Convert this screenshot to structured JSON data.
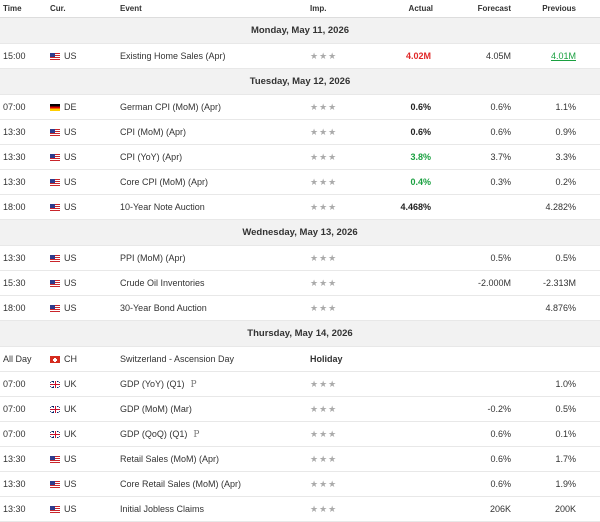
{
  "columns": {
    "time": "Time",
    "currency": "Cur.",
    "event": "Event",
    "importance": "Imp.",
    "actual": "Actual",
    "forecast": "Forecast",
    "previous": "Previous"
  },
  "stars_glyph": "★★★",
  "days": [
    {
      "title": "Monday, May 11, 2026",
      "events": [
        {
          "time": "15:00",
          "flag": "us",
          "cur": "US",
          "event": "Existing Home Sales  (Apr)",
          "actual": "4.02M",
          "actual_color": "red",
          "forecast": "4.05M",
          "previous": "4.01M",
          "previous_color": "green"
        }
      ]
    },
    {
      "title": "Tuesday, May 12, 2026",
      "events": [
        {
          "time": "07:00",
          "flag": "de",
          "cur": "DE",
          "event": "German CPI (MoM) (Apr)",
          "actual": "0.6%",
          "actual_color": "black",
          "forecast": "0.6%",
          "previous": "1.1%"
        },
        {
          "time": "13:30",
          "flag": "us",
          "cur": "US",
          "event": "CPI (MoM) (Apr)",
          "actual": "0.6%",
          "actual_color": "black",
          "forecast": "0.6%",
          "previous": "0.9%"
        },
        {
          "time": "13:30",
          "flag": "us",
          "cur": "US",
          "event": "CPI (YoY) (Apr)",
          "actual": "3.8%",
          "actual_color": "green",
          "forecast": "3.7%",
          "previous": "3.3%"
        },
        {
          "time": "13:30",
          "flag": "us",
          "cur": "US",
          "event": "Core CPI (MoM) (Apr)",
          "actual": "0.4%",
          "actual_color": "green",
          "forecast": "0.3%",
          "previous": "0.2%"
        },
        {
          "time": "18:00",
          "flag": "us",
          "cur": "US",
          "event": "10-Year Note Auction",
          "actual": "4.468%",
          "actual_color": "black",
          "forecast": "",
          "previous": "4.282%"
        }
      ]
    },
    {
      "title": "Wednesday, May 13, 2026",
      "events": [
        {
          "time": "13:30",
          "flag": "us",
          "cur": "US",
          "event": "PPI (MoM) (Apr)",
          "actual": "",
          "forecast": "0.5%",
          "previous": "0.5%"
        },
        {
          "time": "15:30",
          "flag": "us",
          "cur": "US",
          "event": "Crude Oil Inventories",
          "actual": "",
          "forecast": "-2.000M",
          "previous": "-2.313M"
        },
        {
          "time": "18:00",
          "flag": "us",
          "cur": "US",
          "event": "30-Year Bond Auction",
          "actual": "",
          "forecast": "",
          "previous": "4.876%"
        }
      ]
    },
    {
      "title": "Thursday, May 14, 2026",
      "events": [
        {
          "time": "All Day",
          "flag": "ch",
          "cur": "CH",
          "event": "Switzerland - Ascension Day",
          "holiday": "Holiday",
          "actual": "",
          "forecast": "",
          "previous": ""
        },
        {
          "time": "07:00",
          "flag": "uk",
          "cur": "UK",
          "event": "GDP (YoY) (Q1)",
          "prelim": "P",
          "actual": "",
          "forecast": "",
          "previous": "1.0%"
        },
        {
          "time": "07:00",
          "flag": "uk",
          "cur": "UK",
          "event": "GDP (MoM) (Mar)",
          "actual": "",
          "forecast": "-0.2%",
          "previous": "0.5%"
        },
        {
          "time": "07:00",
          "flag": "uk",
          "cur": "UK",
          "event": "GDP (QoQ) (Q1)",
          "prelim": "P",
          "actual": "",
          "forecast": "0.6%",
          "previous": "0.1%"
        },
        {
          "time": "13:30",
          "flag": "us",
          "cur": "US",
          "event": "Retail Sales (MoM) (Apr)",
          "actual": "",
          "forecast": "0.6%",
          "previous": "1.7%"
        },
        {
          "time": "13:30",
          "flag": "us",
          "cur": "US",
          "event": "Core Retail Sales (MoM) (Apr)",
          "actual": "",
          "forecast": "0.6%",
          "previous": "1.9%"
        },
        {
          "time": "13:30",
          "flag": "us",
          "cur": "US",
          "event": "Initial Jobless Claims",
          "actual": "",
          "forecast": "206K",
          "previous": "200K"
        }
      ]
    }
  ]
}
